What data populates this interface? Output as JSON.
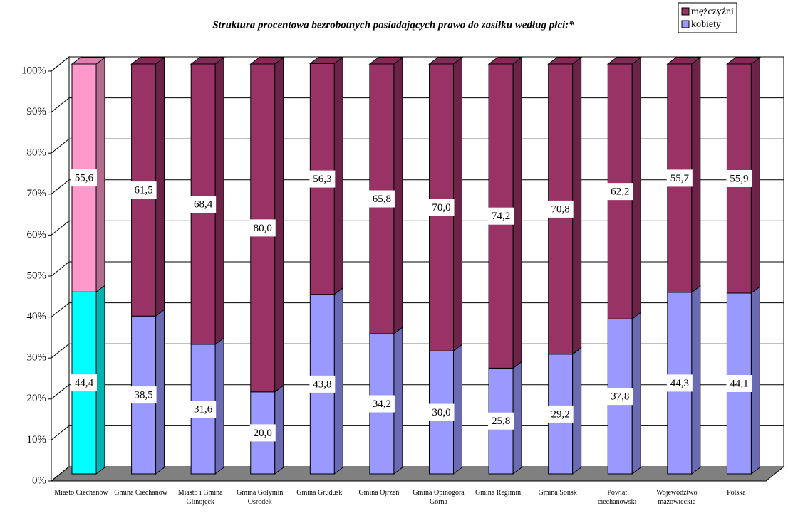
{
  "chart_data": {
    "type": "stacked_bar_3d",
    "title": "Struktura procentowa bezrobotnych posiadających prawo do zasiłku według płci:*",
    "categories": [
      "Miasto Ciechanów",
      "Gmina Ciechanów",
      "Miasto i Gmina Glinojeck",
      "Gmina Gołymin Ośrodek",
      "Gmina Grudusk",
      "Gmina Ojrzeń",
      "Gmina Opinogóra Górna",
      "Gmina Regimin",
      "Gmina Sońsk",
      "Powiat ciechanowski",
      "Województwo mazowieckie",
      "Polska"
    ],
    "series": [
      {
        "name": "kobiety",
        "color": "#9999ff",
        "colors": [
          "#00ffff",
          "#9999ff",
          "#9999ff",
          "#9999ff",
          "#9999ff",
          "#9999ff",
          "#9999ff",
          "#9999ff",
          "#9999ff",
          "#9999ff",
          "#9999ff",
          "#9999ff"
        ],
        "values": [
          44.4,
          38.5,
          31.6,
          20.0,
          43.8,
          34.2,
          30.0,
          25.8,
          29.2,
          37.8,
          44.3,
          44.1
        ],
        "value_labels": [
          "44,4",
          "38,5",
          "31,6",
          "20,0",
          "43,8",
          "34,2",
          "30,0",
          "25,8",
          "29,2",
          "37,8",
          "44,3",
          "44,1"
        ]
      },
      {
        "name": "mężczyźni",
        "color": "#993366",
        "colors": [
          "#ff99cc",
          "#993366",
          "#993366",
          "#993366",
          "#993366",
          "#993366",
          "#993366",
          "#993366",
          "#993366",
          "#993366",
          "#993366",
          "#993366"
        ],
        "values": [
          55.6,
          61.5,
          68.4,
          80.0,
          56.3,
          65.8,
          70.0,
          74.2,
          70.8,
          62.2,
          55.7,
          55.9
        ],
        "value_labels": [
          "55,6",
          "61,5",
          "68,4",
          "80,0",
          "56,3",
          "65,8",
          "70,0",
          "74,2",
          "70,8",
          "62,2",
          "55,7",
          "55,9"
        ]
      }
    ],
    "ylim": [
      0,
      100
    ],
    "yticks": [
      {
        "value": 0,
        "label": "0%"
      },
      {
        "value": 10,
        "label": "10%"
      },
      {
        "value": 20,
        "label": "20%"
      },
      {
        "value": 30,
        "label": "30%"
      },
      {
        "value": 40,
        "label": "40%"
      },
      {
        "value": 50,
        "label": "50%"
      },
      {
        "value": 60,
        "label": "60%"
      },
      {
        "value": 70,
        "label": "70%"
      },
      {
        "value": 80,
        "label": "80%"
      },
      {
        "value": 90,
        "label": "90%"
      },
      {
        "value": 100,
        "label": "100%"
      }
    ],
    "grid": true,
    "legend": "top-right"
  }
}
